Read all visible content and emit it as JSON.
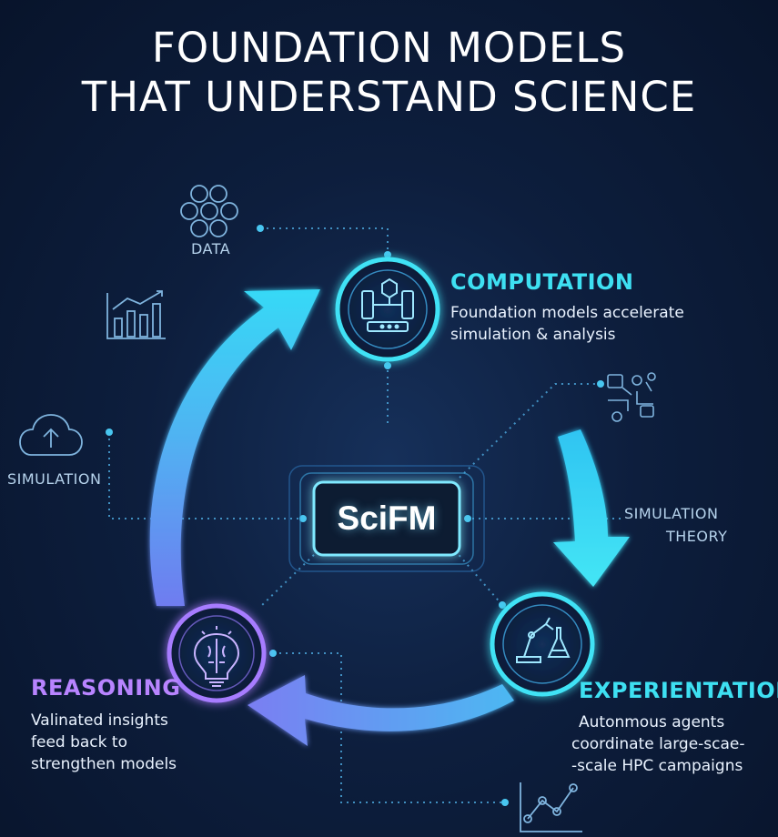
{
  "title": {
    "line1": "FOUNDATION MODELS",
    "line2": "THAT UNDERSTAND SCIENCE"
  },
  "core": {
    "label": "SciFM"
  },
  "labels": {
    "data": "DATA",
    "simulation_left": "SIMULATION",
    "simulation_right": "SIMULATION",
    "theory": "THEORY"
  },
  "nodes": {
    "computation": {
      "title": "COMPUTATION",
      "desc": [
        "Foundation models accelerate",
        "simulation & analysis"
      ],
      "icon": "circuit-board-icon"
    },
    "experientation": {
      "title": "EXPERIENTATION",
      "desc": [
        "Autonmous agents",
        "coordinate large-scae-",
        "-scale HPC campaigns"
      ],
      "icon": "robot-arm-flask-icon"
    },
    "reasoning": {
      "title": "REASONING",
      "desc": [
        "Valinated insights",
        "feed back to",
        "strengthen models"
      ],
      "icon": "brain-bulb-icon"
    }
  },
  "colors": {
    "background": "#0d1e3d",
    "cyan_accent": "#3ee0f2",
    "purple_accent": "#b884ff",
    "arrow_blue": "#5aa8f0"
  }
}
